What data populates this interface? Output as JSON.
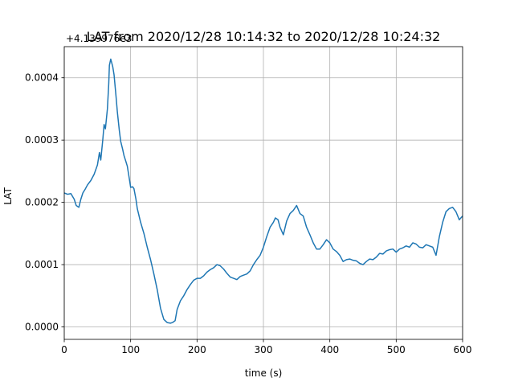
{
  "chart_data": {
    "type": "line",
    "title": "LAT from 2020/12/28 10:14:32 to 2020/12/28 10:24:32",
    "offset_label": "+4.139976e3",
    "xlabel": "time (s)",
    "ylabel": "LAT",
    "xlim": [
      0,
      600
    ],
    "ylim": [
      -2e-05,
      0.00045
    ],
    "x_ticks": [
      0,
      100,
      200,
      300,
      400,
      500,
      600
    ],
    "x_tick_labels": [
      "0",
      "100",
      "200",
      "300",
      "400",
      "500",
      "600"
    ],
    "y_ticks": [
      0,
      0.0001,
      0.0002,
      0.0003,
      0.0004
    ],
    "y_tick_labels": [
      "0.0000",
      "0.0001",
      "0.0002",
      "0.0003",
      "0.0004"
    ],
    "grid": true,
    "series": [
      {
        "color": "#1f77b4",
        "x": [
          0,
          5,
          10,
          15,
          18,
          22,
          25,
          28,
          32,
          35,
          40,
          45,
          50,
          53,
          55,
          58,
          60,
          62,
          65,
          67,
          68,
          70,
          73,
          75,
          78,
          80,
          83,
          85,
          88,
          90,
          93,
          95,
          98,
          100,
          103,
          105,
          108,
          110,
          115,
          120,
          125,
          130,
          135,
          140,
          145,
          150,
          155,
          160,
          163,
          167,
          170,
          175,
          180,
          185,
          190,
          195,
          200,
          205,
          210,
          215,
          220,
          225,
          230,
          235,
          240,
          245,
          250,
          255,
          260,
          265,
          270,
          275,
          280,
          285,
          290,
          295,
          300,
          305,
          310,
          315,
          318,
          322,
          325,
          330,
          335,
          340,
          345,
          350,
          355,
          360,
          365,
          370,
          375,
          380,
          385,
          390,
          395,
          400,
          405,
          410,
          415,
          420,
          425,
          430,
          435,
          440,
          445,
          450,
          455,
          460,
          465,
          470,
          475,
          480,
          485,
          490,
          495,
          500,
          505,
          510,
          515,
          520,
          525,
          530,
          535,
          540,
          545,
          550,
          555,
          560,
          565,
          570,
          575,
          580,
          585,
          590,
          595,
          600
        ],
        "y": [
          0.000215,
          0.000213,
          0.000214,
          0.000205,
          0.000195,
          0.000192,
          0.000205,
          0.000215,
          0.000222,
          0.000228,
          0.000235,
          0.000245,
          0.00026,
          0.00028,
          0.000268,
          0.0003,
          0.000325,
          0.000318,
          0.00035,
          0.00039,
          0.00042,
          0.00043,
          0.000418,
          0.000405,
          0.00037,
          0.000345,
          0.000315,
          0.000298,
          0.000285,
          0.000275,
          0.000265,
          0.000258,
          0.000238,
          0.000224,
          0.000225,
          0.000222,
          0.000205,
          0.00019,
          0.000168,
          0.00015,
          0.000128,
          0.000108,
          8.5e-05,
          6e-05,
          3e-05,
          1.2e-05,
          7e-06,
          6e-06,
          7e-06,
          1e-05,
          2.8e-05,
          4.2e-05,
          5e-05,
          6e-05,
          6.8e-05,
          7.5e-05,
          7.8e-05,
          7.8e-05,
          8.2e-05,
          8.8e-05,
          9.2e-05,
          9.5e-05,
          0.0001,
          9.8e-05,
          9.3e-05,
          8.6e-05,
          8e-05,
          7.8e-05,
          7.6e-05,
          8.1e-05,
          8.3e-05,
          8.5e-05,
          9e-05,
          0.0001,
          0.000108,
          0.000115,
          0.000128,
          0.000145,
          0.00016,
          0.000168,
          0.000175,
          0.000172,
          0.00016,
          0.000148,
          0.00017,
          0.000182,
          0.000187,
          0.000195,
          0.000182,
          0.000178,
          0.00016,
          0.000148,
          0.000135,
          0.000125,
          0.000125,
          0.000132,
          0.00014,
          0.000135,
          0.000125,
          0.000121,
          0.000115,
          0.000105,
          0.000108,
          0.000109,
          0.000107,
          0.000106,
          0.000102,
          0.0001,
          0.000105,
          0.000109,
          0.000108,
          0.000112,
          0.000118,
          0.000117,
          0.000122,
          0.000124,
          0.000125,
          0.00012,
          0.000125,
          0.000127,
          0.00013,
          0.000128,
          0.000135,
          0.000133,
          0.000128,
          0.000127,
          0.000132,
          0.00013,
          0.000128,
          0.000115,
          0.000145,
          0.000168,
          0.000185,
          0.00019,
          0.000192,
          0.000185,
          0.000172,
          0.000178
        ]
      }
    ]
  }
}
